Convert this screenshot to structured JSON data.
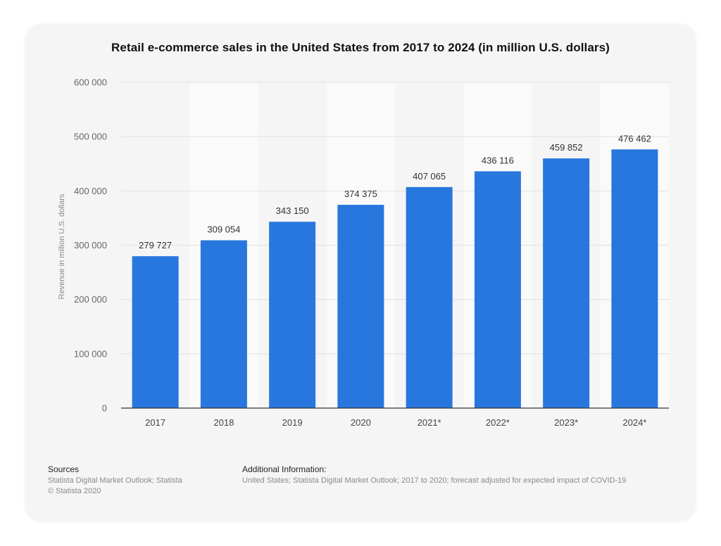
{
  "chart_data": {
    "type": "bar",
    "title": "Retail e-commerce sales in the United States from 2017 to 2024 (in million U.S. dollars)",
    "xlabel": "",
    "ylabel": "Revenue in million U.S. dollars",
    "categories": [
      "2017",
      "2018",
      "2019",
      "2020",
      "2021*",
      "2022*",
      "2023*",
      "2024*"
    ],
    "values": [
      279727,
      309054,
      343150,
      374375,
      407065,
      436116,
      459852,
      476462
    ],
    "value_labels": [
      "279 727",
      "309 054",
      "343 150",
      "374 375",
      "407 065",
      "436 116",
      "459 852",
      "476 462"
    ],
    "ylim": [
      0,
      600000
    ],
    "yticks": [
      0,
      100000,
      200000,
      300000,
      400000,
      500000,
      600000
    ],
    "ytick_labels": [
      "0",
      "100 000",
      "200 000",
      "300 000",
      "400 000",
      "500 000",
      "600 000"
    ],
    "grid": true,
    "bar_color": "#2877df"
  },
  "footer": {
    "sources_heading": "Sources",
    "sources_line1": "Statista Digital Market Outlook; Statista",
    "sources_line2": "© Statista 2020",
    "additional_heading": "Additional Information:",
    "additional_text": "United States; Statista Digital Market Outlook; 2017 to 2020; forecast adjusted for expected impact of COVID-19"
  }
}
